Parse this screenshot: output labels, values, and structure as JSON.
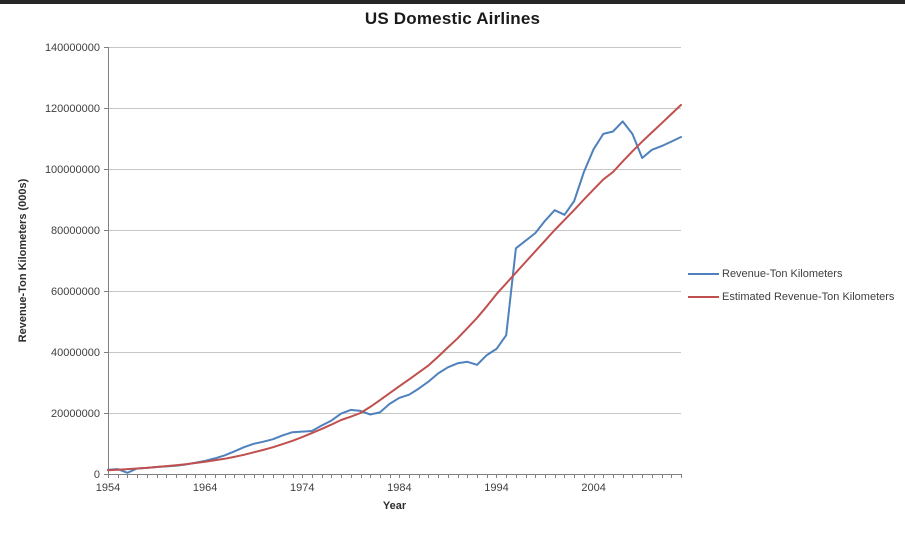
{
  "chart_data": {
    "type": "line",
    "title": "US Domestic Airlines",
    "xlabel": "Year",
    "ylabel": "Revenue-Ton Kilometers (000s)",
    "xlim": [
      1954,
      2013
    ],
    "ylim": [
      0,
      140000000
    ],
    "grid": "horizontal",
    "legend_position": "right",
    "y_ticks": [
      0,
      20000000,
      40000000,
      60000000,
      80000000,
      100000000,
      120000000,
      140000000
    ],
    "y_tick_labels": [
      "0",
      "20000000",
      "40000000",
      "60000000",
      "80000000",
      "100000000",
      "120000000",
      "140000000"
    ],
    "x_ticks_labeled": [
      1954,
      1964,
      1974,
      1984,
      1994,
      2004
    ],
    "x": [
      1954,
      1955,
      1956,
      1957,
      1958,
      1959,
      1960,
      1961,
      1962,
      1963,
      1964,
      1965,
      1966,
      1967,
      1968,
      1969,
      1970,
      1971,
      1972,
      1973,
      1974,
      1975,
      1976,
      1977,
      1978,
      1979,
      1980,
      1981,
      1982,
      1983,
      1984,
      1985,
      1986,
      1987,
      1988,
      1989,
      1990,
      1991,
      1992,
      1993,
      1994,
      1995,
      1996,
      1997,
      1998,
      1999,
      2000,
      2001,
      2002,
      2003,
      2004,
      2005,
      2006,
      2007,
      2008,
      2009,
      2010,
      2011,
      2012,
      2013
    ],
    "series": [
      {
        "name": "Revenue-Ton Kilometers",
        "color": "#4F81BD",
        "values": [
          1400000,
          1600000,
          400000,
          1800000,
          2000000,
          2300000,
          2500000,
          2700000,
          3100000,
          3700000,
          4300000,
          5100000,
          6100000,
          7400000,
          8800000,
          9900000,
          10600000,
          11400000,
          12700000,
          13700000,
          13900000,
          14100000,
          15900000,
          17500000,
          19800000,
          21000000,
          20700000,
          19500000,
          20200000,
          23000000,
          25000000,
          26000000,
          28000000,
          30300000,
          33000000,
          35000000,
          36300000,
          36800000,
          35800000,
          39000000,
          41000000,
          45500000,
          74000000,
          76500000,
          79000000,
          83000000,
          86500000,
          85000000,
          89500000,
          99000000,
          106500000,
          111500000,
          112300000,
          115600000,
          111500000,
          103600000,
          106300000,
          107500000,
          109000000,
          110500000
        ]
      },
      {
        "name": "Estimated Revenue-Ton Kilometers",
        "color": "#C0504D",
        "values": [
          1200000,
          1400000,
          1600000,
          1800000,
          2000000,
          2300000,
          2600000,
          2900000,
          3200000,
          3600000,
          4000000,
          4500000,
          5000000,
          5600000,
          6300000,
          7100000,
          7900000,
          8800000,
          9800000,
          10900000,
          12100000,
          13400000,
          14800000,
          16200000,
          17700000,
          18800000,
          20000000,
          22000000,
          24200000,
          26500000,
          28800000,
          31000000,
          33300000,
          35600000,
          38500000,
          41500000,
          44500000,
          47800000,
          51200000,
          55000000,
          59000000,
          62500000,
          66000000,
          69500000,
          73000000,
          76500000,
          80000000,
          83300000,
          86600000,
          90000000,
          93300000,
          96600000,
          99000000,
          102500000,
          105800000,
          109000000,
          112000000,
          115000000,
          118000000,
          121000000
        ]
      }
    ],
    "colors": {
      "gridline": "#c6c6c6",
      "axis": "#808080",
      "tick_label": "#3f3f3f",
      "title": "#1a1a1a",
      "top_bar": "#262626"
    }
  }
}
